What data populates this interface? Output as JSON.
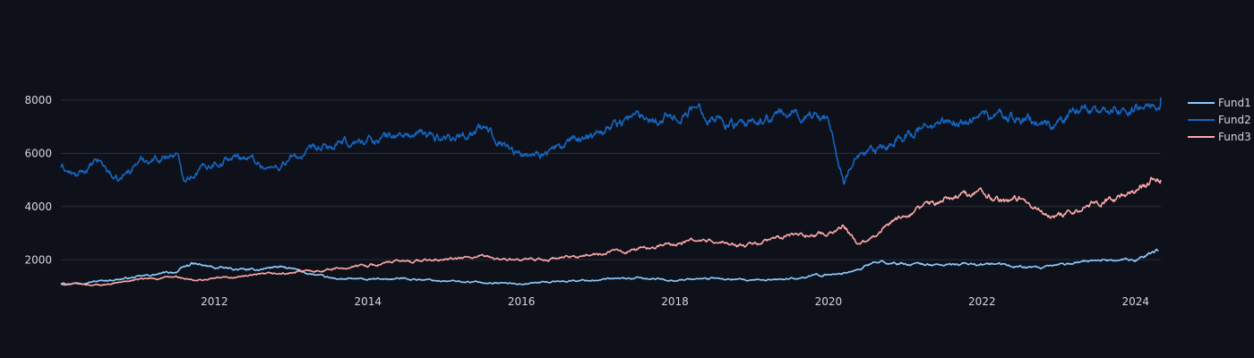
{
  "chart_data": {
    "type": "line",
    "title": "",
    "xlabel": "",
    "ylabel": "",
    "background": "#0e111a",
    "grid": true,
    "legend_position": "top-right",
    "xlim": [
      2010.0,
      2024.33
    ],
    "ylim": [
      1000,
      8400
    ],
    "x_ticks": [
      2012,
      2014,
      2016,
      2018,
      2020,
      2022,
      2024
    ],
    "x_tick_labels": [
      "2012",
      "2014",
      "2016",
      "2018",
      "2020",
      "2022",
      "2024"
    ],
    "y_ticks": [
      2000,
      4000,
      6000,
      8000
    ],
    "y_tick_labels": [
      "2000",
      "4000",
      "6000",
      "8000"
    ],
    "series": [
      {
        "name": "Fund1",
        "color": "#8ecbff",
        "x": [
          2010.0,
          2010.5,
          2011.0,
          2011.5,
          2011.7,
          2012.0,
          2012.5,
          2012.8,
          2013.0,
          2013.5,
          2014.0,
          2014.5,
          2015.0,
          2015.5,
          2016.0,
          2016.5,
          2017.0,
          2017.5,
          2018.0,
          2018.5,
          2019.0,
          2019.5,
          2020.0,
          2020.3,
          2020.6,
          2021.0,
          2021.5,
          2022.0,
          2022.5,
          2022.8,
          2023.0,
          2023.5,
          2024.0,
          2024.3
        ],
        "values": [
          1100,
          1200,
          1350,
          1550,
          1850,
          1700,
          1600,
          1750,
          1650,
          1300,
          1250,
          1300,
          1200,
          1150,
          1100,
          1200,
          1250,
          1300,
          1250,
          1300,
          1200,
          1300,
          1450,
          1550,
          1900,
          1850,
          1800,
          1850,
          1750,
          1650,
          1800,
          2000,
          2000,
          2350
        ]
      },
      {
        "name": "Fund2",
        "color": "#1565c0",
        "x": [
          2010.0,
          2010.2,
          2010.5,
          2010.75,
          2011.0,
          2011.5,
          2011.6,
          2012.0,
          2012.4,
          2012.75,
          2013.0,
          2013.5,
          2014.0,
          2014.5,
          2015.0,
          2015.5,
          2015.75,
          2016.0,
          2016.5,
          2017.0,
          2017.5,
          2018.0,
          2018.3,
          2018.6,
          2018.9,
          2019.2,
          2019.5,
          2020.0,
          2020.2,
          2020.35,
          2020.6,
          2021.0,
          2021.5,
          2022.0,
          2022.5,
          2022.9,
          2023.3,
          2023.7,
          2024.0,
          2024.33
        ],
        "values": [
          5500,
          5100,
          5700,
          4900,
          5700,
          6000,
          5100,
          5700,
          5900,
          5400,
          5800,
          6200,
          6500,
          6700,
          6600,
          6900,
          6500,
          5900,
          6200,
          6900,
          7400,
          7400,
          7700,
          7300,
          6900,
          7300,
          7500,
          7400,
          5000,
          5800,
          6000,
          6700,
          7100,
          7400,
          7300,
          7000,
          7800,
          7600,
          7700,
          8100
        ]
      },
      {
        "name": "Fund3",
        "color": "#ffa8a8",
        "x": [
          2010.0,
          2010.5,
          2011.0,
          2011.5,
          2011.75,
          2012.0,
          2012.5,
          2013.0,
          2013.5,
          2014.0,
          2014.5,
          2015.0,
          2015.5,
          2016.0,
          2016.5,
          2017.0,
          2017.5,
          2018.0,
          2018.3,
          2018.9,
          2019.2,
          2019.5,
          2020.0,
          2020.2,
          2020.4,
          2020.7,
          2021.0,
          2021.5,
          2022.0,
          2022.3,
          2022.5,
          2022.9,
          2023.2,
          2023.5,
          2024.0,
          2024.25,
          2024.33
        ],
        "values": [
          1100,
          1050,
          1250,
          1350,
          1200,
          1300,
          1400,
          1500,
          1650,
          1800,
          1950,
          2000,
          2100,
          1950,
          2050,
          2200,
          2400,
          2600,
          2750,
          2500,
          2700,
          2900,
          3000,
          3300,
          2600,
          3200,
          3600,
          4300,
          4600,
          4100,
          4300,
          3600,
          3900,
          4200,
          4500,
          5200,
          5000
        ]
      }
    ]
  }
}
